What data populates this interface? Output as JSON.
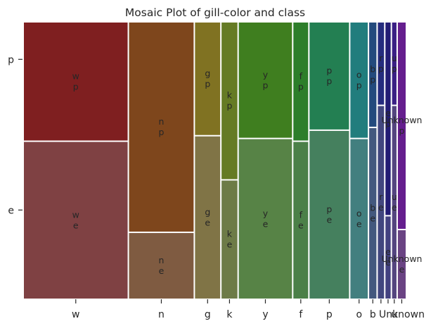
{
  "chart_data": {
    "type": "mosaic",
    "title": "Mosaic Plot of gill-color and class",
    "xlabel": "",
    "ylabel": "",
    "x_variable_categories": [
      "w",
      "n",
      "g",
      "k",
      "y",
      "f",
      "p",
      "o",
      "b",
      "r",
      "e",
      "u",
      "Unknown"
    ],
    "x_tick_labels": [
      "w",
      "n",
      "g",
      "k",
      "y",
      "f",
      "p",
      "o",
      "b",
      "u",
      "Unknown"
    ],
    "y_variable_categories": [
      "p",
      "e"
    ],
    "y_tick_labels": [
      "p",
      "e"
    ],
    "column_widths": [
      0.4,
      0.249,
      0.097,
      0.061,
      0.205,
      0.057,
      0.152,
      0.067,
      0.028,
      0.024,
      0.02,
      0.017,
      0.03
    ],
    "p_fraction": [
      0.43,
      0.76,
      0.41,
      0.57,
      0.42,
      0.43,
      0.39,
      0.42,
      0.38,
      0.3,
      0.7,
      0.3,
      0.75
    ],
    "cell_labels_p": [
      "w\np",
      "n\np",
      "g\np",
      "k\np",
      "y\np",
      "f\np",
      "p\np",
      "o\np",
      "b\np",
      "r\np",
      "e\np",
      "u\np",
      "Unknown\np"
    ],
    "cell_labels_e": [
      "w\ne",
      "n\ne",
      "g\ne",
      "k\ne",
      "y\ne",
      "f\ne",
      "p\ne",
      "o\ne",
      "b\ne",
      "r\ne",
      "e\ne",
      "u\ne",
      "Unknown\ne"
    ],
    "colors_p": [
      "#7f1f20",
      "#7e461c",
      "#807222",
      "#657b24",
      "#3f7e1f",
      "#2d7e2a",
      "#237f52",
      "#217d7d",
      "#234a7d",
      "#252c7e",
      "#231c74",
      "#3a1f84",
      "#651e8e"
    ],
    "colors_e": [
      "#7f4143",
      "#7f5b41",
      "#807446",
      "#6d7b47",
      "#578346",
      "#4b8048",
      "#45805e",
      "#427f7f",
      "#43587e",
      "#42477f",
      "#434180",
      "#54457f",
      "#6a4383"
    ],
    "grid": false,
    "legend": "none"
  }
}
